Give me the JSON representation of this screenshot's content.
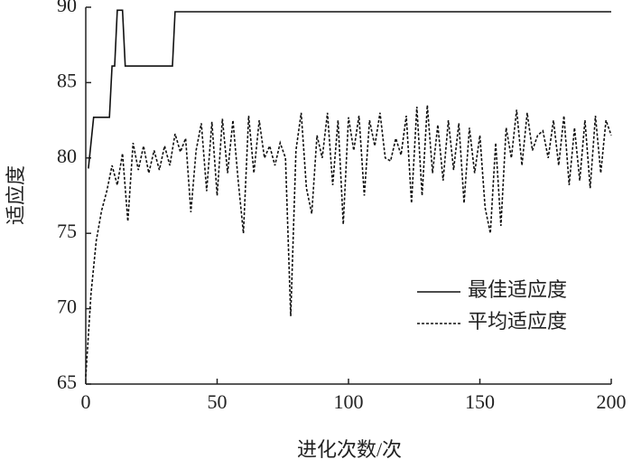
{
  "chart_data": {
    "type": "line",
    "xlabel": "进化次数/次",
    "ylabel": "适应度",
    "xlim": [
      0,
      200
    ],
    "xticks": [
      0,
      50,
      100,
      150,
      200
    ],
    "ylim": [
      65,
      90
    ],
    "yticks": [
      65,
      70,
      75,
      80,
      85,
      90
    ],
    "legend": "right",
    "grid": false,
    "series": [
      {
        "name": "最佳适应度",
        "color": "#111111",
        "dash": "solid",
        "x": [
          1,
          3,
          9,
          10,
          11,
          12,
          14,
          15,
          33,
          34,
          200
        ],
        "values": [
          79.3,
          82.7,
          82.7,
          86.1,
          86.1,
          89.8,
          89.8,
          86.1,
          86.1,
          89.7,
          89.7
        ]
      },
      {
        "name": "平均适应度",
        "color": "#111111",
        "dash": "dotted",
        "x": [
          0,
          2,
          4,
          6,
          8,
          10,
          12,
          14,
          16,
          18,
          20,
          22,
          24,
          26,
          28,
          30,
          32,
          34,
          36,
          38,
          40,
          42,
          44,
          46,
          48,
          50,
          52,
          54,
          56,
          58,
          60,
          62,
          64,
          66,
          68,
          70,
          72,
          74,
          76,
          78,
          80,
          82,
          84,
          86,
          88,
          90,
          92,
          94,
          96,
          98,
          100,
          102,
          104,
          106,
          108,
          110,
          112,
          114,
          116,
          118,
          120,
          122,
          124,
          126,
          128,
          130,
          132,
          134,
          136,
          138,
          140,
          142,
          144,
          146,
          148,
          150,
          152,
          154,
          156,
          158,
          160,
          162,
          164,
          166,
          168,
          170,
          172,
          174,
          176,
          178,
          180,
          182,
          184,
          186,
          188,
          190,
          192,
          194,
          196,
          198,
          200
        ],
        "values": [
          65.5,
          71,
          74.5,
          76.5,
          77.8,
          79.5,
          78.2,
          80.3,
          75.8,
          81,
          79.2,
          80.8,
          79,
          80.5,
          79.2,
          80.8,
          79.5,
          81.6,
          80.4,
          81.3,
          76.4,
          80.5,
          82.3,
          77.8,
          82.4,
          77.5,
          82.6,
          79,
          82.5,
          78.5,
          75,
          82.8,
          79,
          82.5,
          80,
          80.8,
          79.5,
          81,
          80,
          69.5,
          80.5,
          83,
          78,
          76.3,
          81.5,
          80,
          83,
          78.2,
          82.5,
          75.6,
          82.7,
          80.5,
          82.8,
          77.5,
          82.5,
          80.8,
          83,
          80,
          79.8,
          81.3,
          80.2,
          82.8,
          77,
          83.4,
          77.5,
          83.5,
          79,
          82.2,
          78.5,
          82.5,
          79.2,
          82.3,
          77,
          82,
          79,
          81.5,
          76.7,
          75,
          81,
          75.5,
          82,
          80,
          83.2,
          79.5,
          83,
          80.5,
          81.5,
          81.8,
          80,
          82.5,
          79.5,
          82.8,
          78.2,
          82,
          78.5,
          82.5,
          78,
          82.8,
          79,
          82.5,
          81.5
        ]
      }
    ]
  }
}
